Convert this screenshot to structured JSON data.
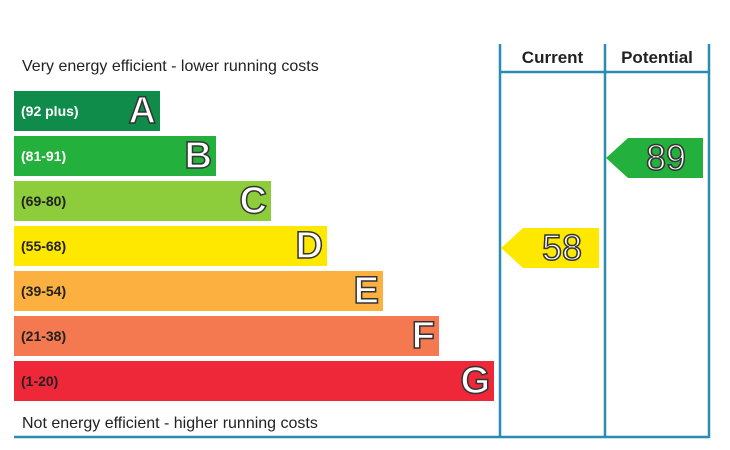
{
  "captions": {
    "top": "Very energy efficient - lower running costs",
    "bottom": "Not energy efficient - higher running costs"
  },
  "headers": {
    "current": "Current",
    "potential": "Potential"
  },
  "bands": [
    {
      "letter": "A",
      "range": "(92 plus)",
      "min": 92,
      "max": 100,
      "color": "#0f8c4a",
      "range_color": "#ffffff"
    },
    {
      "letter": "B",
      "range": "(81-91)",
      "min": 81,
      "max": 91,
      "color": "#24b03c",
      "range_color": "#ffffff"
    },
    {
      "letter": "C",
      "range": "(69-80)",
      "min": 69,
      "max": 80,
      "color": "#8dcc3a",
      "range_color": "#222222"
    },
    {
      "letter": "D",
      "range": "(55-68)",
      "min": 55,
      "max": 68,
      "color": "#ffe800",
      "range_color": "#222222"
    },
    {
      "letter": "E",
      "range": "(39-54)",
      "min": 39,
      "max": 54,
      "color": "#fbb03f",
      "range_color": "#222222"
    },
    {
      "letter": "F",
      "range": "(21-38)",
      "min": 21,
      "max": 38,
      "color": "#f47850",
      "range_color": "#222222"
    },
    {
      "letter": "G",
      "range": "(1-20)",
      "min": 1,
      "max": 20,
      "color": "#ee2839",
      "range_color": "#222222"
    }
  ],
  "ratings": {
    "current": {
      "value": 58,
      "color": "#ffe800"
    },
    "potential": {
      "value": 89,
      "color": "#24b03c"
    }
  },
  "colors": {
    "frame": "#2a8cb0"
  }
}
